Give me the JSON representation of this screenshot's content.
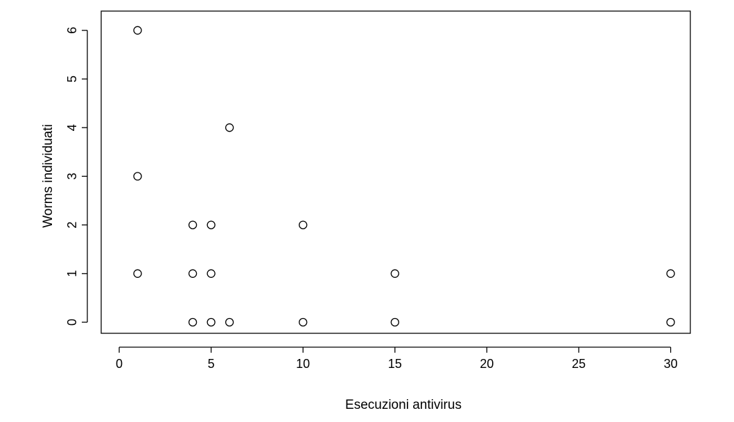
{
  "chart_data": {
    "type": "scatter",
    "title": "",
    "xlabel": "Esecuzioni antivirus",
    "ylabel": "Worms individuati",
    "xlim": [
      0,
      31
    ],
    "ylim": [
      0,
      6
    ],
    "xticks": [
      0,
      5,
      10,
      15,
      20,
      25,
      30
    ],
    "yticks": [
      0,
      1,
      2,
      3,
      4,
      5,
      6
    ],
    "grid": false,
    "legend": "none",
    "marker": "open-circle",
    "color": "#000000",
    "points": [
      {
        "x": 1,
        "y": 6
      },
      {
        "x": 1,
        "y": 3
      },
      {
        "x": 1,
        "y": 1
      },
      {
        "x": 6,
        "y": 4
      },
      {
        "x": 4,
        "y": 2
      },
      {
        "x": 5,
        "y": 2
      },
      {
        "x": 10,
        "y": 2
      },
      {
        "x": 4,
        "y": 1
      },
      {
        "x": 5,
        "y": 1
      },
      {
        "x": 15,
        "y": 1
      },
      {
        "x": 30,
        "y": 1
      },
      {
        "x": 4,
        "y": 0
      },
      {
        "x": 5,
        "y": 0
      },
      {
        "x": 6,
        "y": 0
      },
      {
        "x": 10,
        "y": 0
      },
      {
        "x": 15,
        "y": 0
      },
      {
        "x": 30,
        "y": 0
      }
    ]
  }
}
